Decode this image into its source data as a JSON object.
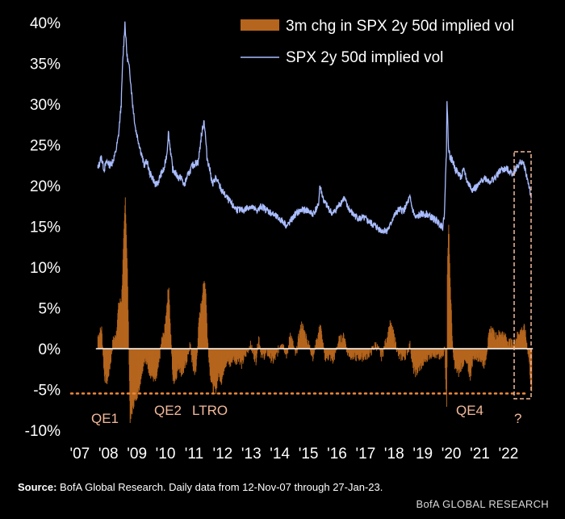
{
  "chart_data": {
    "type": "line",
    "title": "",
    "xlabel": "",
    "ylabel": "",
    "ylim": [
      -10,
      40
    ],
    "y_ticks": [
      "40%",
      "35%",
      "30%",
      "25%",
      "20%",
      "15%",
      "10%",
      "5%",
      "0%",
      "-5%",
      "-10%"
    ],
    "y_tick_values": [
      40,
      35,
      30,
      25,
      20,
      15,
      10,
      5,
      0,
      -5,
      -10
    ],
    "x_ticks": [
      "'07",
      "'08",
      "'09",
      "'10",
      "'11",
      "'12",
      "'13",
      "'14",
      "'15",
      "'16",
      "'17",
      "'18",
      "'19",
      "'20",
      "'21",
      "'22"
    ],
    "x_tick_values": [
      2007.0,
      2008.0,
      2009.0,
      2010.0,
      2011.0,
      2012.0,
      2013.0,
      2014.0,
      2015.0,
      2016.0,
      2017.0,
      2018.0,
      2019.0,
      2020.0,
      2021.0,
      2022.0
    ],
    "xlim": [
      2007.0,
      2023.1
    ],
    "legend_position": "top-right",
    "series": [
      {
        "name": "3m chg in SPX 2y 50d implied vol",
        "kind": "bar",
        "color": "#b5651d",
        "x": [
          2007.87,
          2008.0,
          2008.1,
          2008.2,
          2008.3,
          2008.4,
          2008.5,
          2008.6,
          2008.7,
          2008.78,
          2008.83,
          2008.9,
          2009.0,
          2009.1,
          2009.2,
          2009.3,
          2009.4,
          2009.5,
          2009.6,
          2009.7,
          2009.8,
          2009.9,
          2010.0,
          2010.1,
          2010.2,
          2010.3,
          2010.35,
          2010.4,
          2010.5,
          2010.6,
          2010.7,
          2010.8,
          2010.9,
          2011.0,
          2011.1,
          2011.2,
          2011.3,
          2011.4,
          2011.5,
          2011.6,
          2011.65,
          2011.7,
          2011.8,
          2011.9,
          2012.0,
          2012.1,
          2012.2,
          2012.3,
          2012.4,
          2012.5,
          2012.6,
          2012.7,
          2012.8,
          2012.9,
          2013.0,
          2013.2,
          2013.4,
          2013.5,
          2013.6,
          2013.8,
          2014.0,
          2014.1,
          2014.3,
          2014.5,
          2014.6,
          2014.8,
          2014.9,
          2015.0,
          2015.2,
          2015.4,
          2015.6,
          2015.65,
          2015.8,
          2016.0,
          2016.1,
          2016.3,
          2016.5,
          2016.6,
          2016.8,
          2017.0,
          2017.2,
          2017.4,
          2017.6,
          2017.8,
          2018.0,
          2018.1,
          2018.2,
          2018.4,
          2018.6,
          2018.8,
          2018.9,
          2019.0,
          2019.2,
          2019.4,
          2019.6,
          2019.8,
          2019.95,
          2020.0,
          2020.08,
          2020.1,
          2020.15,
          2020.2,
          2020.3,
          2020.4,
          2020.5,
          2020.6,
          2020.7,
          2020.8,
          2020.9,
          2021.0,
          2021.2,
          2021.4,
          2021.6,
          2021.8,
          2022.0,
          2022.2,
          2022.4,
          2022.6,
          2022.8,
          2022.95,
          2023.05
        ],
        "y": [
          1.5,
          2.5,
          -3.5,
          -4,
          -2,
          1,
          1.5,
          5.5,
          6,
          14,
          18.5,
          10,
          -9,
          -7,
          -6,
          -5,
          -3,
          -1,
          -2,
          -3,
          -3.5,
          -4,
          -2,
          1,
          2,
          6,
          8,
          3,
          -4,
          -3.5,
          -2,
          -3,
          -2.5,
          -1,
          0.5,
          -2.5,
          -3,
          3,
          6,
          8.5,
          7,
          1.5,
          -3,
          -5,
          -5,
          -3,
          -4,
          -2,
          -1.5,
          -2,
          -1,
          -1.5,
          -1,
          -2,
          -1,
          0.5,
          -1.5,
          1.5,
          -1,
          -0.5,
          -1.5,
          -1,
          1,
          -1,
          2,
          -1,
          1.5,
          3,
          1,
          -1,
          2,
          3,
          -1,
          -1,
          -1.5,
          1,
          1.5,
          -0.5,
          -1,
          -1,
          -1,
          -0.5,
          0.5,
          -1,
          1.5,
          3,
          2,
          -1,
          -1,
          0.5,
          -2.5,
          -3,
          -2,
          -1,
          -0.5,
          -1,
          -1,
          1,
          -8,
          11,
          15,
          8,
          -1,
          -2.5,
          -3,
          -2,
          -1.5,
          -2,
          -3.5,
          -1,
          -1,
          -2,
          2.5,
          1.5,
          2,
          1,
          0.5,
          2,
          2.5,
          -1,
          -5.5
        ]
      },
      {
        "name": "SPX 2y 50d implied vol",
        "kind": "line",
        "color": "#a9bcff",
        "x": [
          2007.87,
          2008.0,
          2008.1,
          2008.2,
          2008.3,
          2008.4,
          2008.5,
          2008.6,
          2008.7,
          2008.75,
          2008.83,
          2008.9,
          2009.0,
          2009.1,
          2009.2,
          2009.3,
          2009.4,
          2009.5,
          2009.6,
          2009.7,
          2009.8,
          2009.9,
          2010.0,
          2010.1,
          2010.2,
          2010.3,
          2010.35,
          2010.4,
          2010.5,
          2010.6,
          2010.7,
          2010.8,
          2010.9,
          2011.0,
          2011.2,
          2011.4,
          2011.5,
          2011.6,
          2011.65,
          2011.7,
          2011.8,
          2011.9,
          2012.0,
          2012.2,
          2012.4,
          2012.6,
          2012.8,
          2013.0,
          2013.2,
          2013.4,
          2013.5,
          2013.6,
          2013.8,
          2014.0,
          2014.2,
          2014.4,
          2014.5,
          2014.6,
          2014.8,
          2015.0,
          2015.2,
          2015.4,
          2015.6,
          2015.65,
          2015.8,
          2016.0,
          2016.1,
          2016.3,
          2016.5,
          2016.6,
          2016.8,
          2017.0,
          2017.2,
          2017.4,
          2017.6,
          2017.8,
          2018.0,
          2018.1,
          2018.2,
          2018.4,
          2018.6,
          2018.8,
          2018.9,
          2019.0,
          2019.2,
          2019.4,
          2019.6,
          2019.8,
          2019.95,
          2020.0,
          2020.08,
          2020.1,
          2020.15,
          2020.2,
          2020.3,
          2020.4,
          2020.5,
          2020.6,
          2020.7,
          2020.8,
          2020.9,
          2021.0,
          2021.2,
          2021.4,
          2021.6,
          2021.8,
          2022.0,
          2022.2,
          2022.4,
          2022.6,
          2022.7,
          2022.8,
          2022.9,
          2023.0,
          2023.05
        ],
        "y": [
          22,
          23.5,
          22,
          23,
          22.5,
          23,
          24,
          26,
          30,
          35,
          40,
          36,
          34,
          30,
          27,
          25.5,
          24,
          22.5,
          23,
          21.5,
          21,
          20,
          20.5,
          21.5,
          22,
          24,
          26.5,
          25,
          22,
          21.5,
          21,
          21,
          20,
          21,
          22.5,
          23,
          26,
          28,
          26,
          23.5,
          22,
          20,
          21,
          19.5,
          18.5,
          17.5,
          17,
          17,
          17.5,
          17,
          17,
          17.5,
          17,
          16.5,
          16,
          15.5,
          15,
          15.5,
          16.5,
          17,
          17,
          16.5,
          17.5,
          20,
          18,
          17,
          16.5,
          17.5,
          18.5,
          17.5,
          16.5,
          16,
          16,
          15.5,
          15,
          14.5,
          14.5,
          15,
          16,
          17,
          17,
          18.5,
          17,
          16,
          16.5,
          16.5,
          16,
          15.5,
          15,
          16,
          24,
          30.5,
          25,
          23.5,
          23,
          22,
          21.5,
          21,
          22,
          20.5,
          20,
          19.5,
          20,
          21,
          20.5,
          21,
          22,
          22,
          21.5,
          22.5,
          23,
          22.5,
          21,
          19.5,
          18
        ]
      }
    ],
    "annotations": [
      "QE1",
      "QE2",
      "LTRO",
      "QE4",
      "?"
    ],
    "reference_line": {
      "value": -5.5,
      "style": "dotted",
      "color": "#f08a3c"
    }
  },
  "footer": {
    "source_label": "Source:",
    "source_text": " BofA Global Research.  Daily data from 12-Nov-07 through 27-Jan-23.",
    "brand": "BofA GLOBAL RESEARCH"
  },
  "colors": {
    "background": "#000000",
    "bar": "#b5651d",
    "line": "#a9bcff",
    "annotation": "#f4b99a",
    "reference": "#f08a3c"
  }
}
